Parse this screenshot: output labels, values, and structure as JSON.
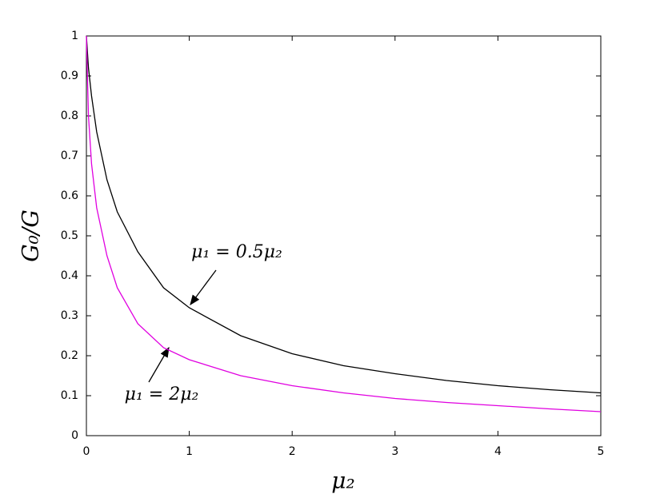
{
  "chart_data": {
    "type": "line",
    "xlabel": "μ₂",
    "ylabel": "G₀/G",
    "x": [
      0,
      0.02,
      0.05,
      0.1,
      0.2,
      0.3,
      0.5,
      0.75,
      1,
      1.5,
      2,
      2.5,
      3,
      3.5,
      4,
      4.5,
      5
    ],
    "series": [
      {
        "name": "μ₁ = 0.5μ₂",
        "color": "#000000",
        "values": [
          1,
          0.92,
          0.85,
          0.76,
          0.64,
          0.56,
          0.46,
          0.37,
          0.32,
          0.25,
          0.205,
          0.175,
          0.155,
          0.138,
          0.125,
          0.115,
          0.107
        ]
      },
      {
        "name": "μ₁ = 2μ₂",
        "color": "#e000e0",
        "values": [
          1,
          0.8,
          0.68,
          0.57,
          0.45,
          0.37,
          0.28,
          0.22,
          0.19,
          0.15,
          0.125,
          0.107,
          0.093,
          0.083,
          0.075,
          0.067,
          0.06
        ]
      }
    ],
    "xlim": [
      0,
      5
    ],
    "xticks": [
      0,
      1,
      2,
      3,
      4,
      5
    ],
    "ylim": [
      0,
      1
    ],
    "yticks": [
      0,
      0.1,
      0.2,
      0.3,
      0.4,
      0.5,
      0.6,
      0.7,
      0.8,
      0.9,
      1
    ]
  }
}
